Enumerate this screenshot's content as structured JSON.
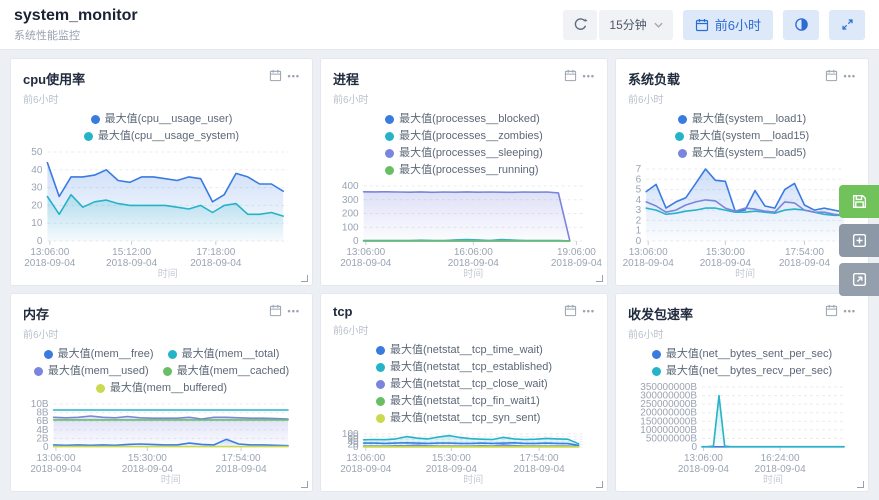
{
  "header": {
    "title": "system_monitor",
    "subtitle": "系统性能监控",
    "refresh_interval": "15分钟",
    "range_label": "前6小时"
  },
  "icons": {
    "ellipsis": "•••"
  },
  "panels": [
    {
      "title": "cpu使用率",
      "subtitle": "前6小时"
    },
    {
      "title": "进程",
      "subtitle": "前6小时"
    },
    {
      "title": "系统负载",
      "subtitle": "前6小时"
    },
    {
      "title": "内存",
      "subtitle": "前6小时"
    },
    {
      "title": "tcp",
      "subtitle": "前6小时"
    },
    {
      "title": "收发包速率",
      "subtitle": "前6小时"
    }
  ],
  "chart_data": [
    {
      "type": "line",
      "title": "cpu使用率",
      "xlabel": "时间",
      "ylim": [
        0,
        50
      ],
      "yticks": [
        "50",
        "40",
        "30",
        "20",
        "10",
        "0"
      ],
      "xticks": [
        {
          "time": "13:06:00",
          "date": "2018-09-04",
          "pos": 0.01
        },
        {
          "time": "15:12:00",
          "date": "2018-09-04",
          "pos": 0.35
        },
        {
          "time": "17:18:00",
          "date": "2018-09-04",
          "pos": 0.7
        }
      ],
      "xspan": 0.98,
      "series": [
        {
          "name": "最大值(cpu__usage_user)",
          "color": "#3a7be0",
          "fill": true,
          "values": [
            44,
            25,
            36,
            36,
            37,
            40,
            34,
            33,
            36,
            36,
            35,
            34,
            36,
            35,
            22,
            26,
            38,
            36,
            32,
            32,
            28
          ]
        },
        {
          "name": "最大值(cpu__usage_system)",
          "color": "#25b3c7",
          "fill": true,
          "values": [
            25,
            15,
            26,
            19,
            22,
            23,
            21,
            20,
            20,
            20,
            20,
            19,
            18,
            20,
            16,
            20,
            21,
            15,
            15,
            16,
            14
          ]
        }
      ]
    },
    {
      "type": "line",
      "title": "进程",
      "xlabel": "时间",
      "ylim": [
        0,
        400
      ],
      "yticks": [
        "400",
        "300",
        "200",
        "100",
        "0"
      ],
      "xticks": [
        {
          "time": "13:06:00",
          "date": "2018-09-04",
          "pos": 0.01
        },
        {
          "time": "16:06:00",
          "date": "2018-09-04",
          "pos": 0.5
        },
        {
          "time": "19:06:00",
          "date": "2018-09-04",
          "pos": 0.97
        }
      ],
      "xspan": 0.94,
      "series": [
        {
          "name": "最大值(processes__blocked)",
          "color": "#3a7be0",
          "fill": false,
          "values": [
            1,
            1,
            1,
            1,
            1,
            1,
            1,
            1,
            1,
            1,
            1,
            1,
            1,
            1,
            1,
            1,
            1,
            1,
            1
          ]
        },
        {
          "name": "最大值(processes__zombies)",
          "color": "#25b3c7",
          "fill": false,
          "values": [
            2,
            2,
            2,
            2,
            2,
            6,
            3,
            2,
            8,
            10,
            8,
            3,
            10,
            7,
            3,
            2,
            2,
            2,
            1
          ]
        },
        {
          "name": "最大值(processes__sleeping)",
          "color": "#7a85dd",
          "fill": true,
          "values": [
            358,
            357,
            358,
            356,
            355,
            357,
            354,
            356,
            355,
            357,
            355,
            356,
            355,
            354,
            356,
            355,
            356,
            350,
            2
          ]
        },
        {
          "name": "最大值(processes__running)",
          "color": "#68bf63",
          "fill": false,
          "values": [
            3,
            3,
            3,
            3,
            3,
            3,
            3,
            3,
            3,
            3,
            3,
            3,
            3,
            3,
            3,
            3,
            3,
            3,
            1
          ]
        }
      ]
    },
    {
      "type": "line",
      "title": "系统负载",
      "xlabel": "时间",
      "ylim": [
        0,
        7
      ],
      "yticks": [
        "7",
        "6",
        "5",
        "4",
        "3",
        "2",
        "1",
        "0"
      ],
      "xticks": [
        {
          "time": "13:06:00",
          "date": "2018-09-04",
          "pos": 0.01
        },
        {
          "time": "15:30:00",
          "date": "2018-09-04",
          "pos": 0.4
        },
        {
          "time": "17:54:00",
          "date": "2018-09-04",
          "pos": 0.8
        }
      ],
      "xspan": 1,
      "series": [
        {
          "name": "最大值(system__load1)",
          "color": "#3a7be0",
          "fill": true,
          "values": [
            4.8,
            5.5,
            3.2,
            3.8,
            4.2,
            5.6,
            7,
            5.9,
            5.8,
            2.9,
            3,
            4.9,
            3.4,
            3.2,
            5,
            5.6,
            3.5,
            3,
            3.2,
            3,
            2.8
          ]
        },
        {
          "name": "最大值(system__load15)",
          "color": "#25b3c7",
          "fill": false,
          "values": [
            3.2,
            3,
            2.6,
            2.7,
            2.9,
            3,
            3.2,
            3.2,
            3,
            2.8,
            2.8,
            2.9,
            2.8,
            2.7,
            3,
            3.1,
            3,
            2.8,
            2.6,
            2.5,
            2.5
          ]
        },
        {
          "name": "最大值(system__load5)",
          "color": "#7a85dd",
          "fill": false,
          "values": [
            3.8,
            3.4,
            2.8,
            3,
            3.5,
            3.8,
            4,
            3.9,
            3.2,
            2.9,
            3.2,
            3.1,
            2.9,
            2.8,
            3.8,
            3.7,
            3,
            2.8,
            2.8,
            2.6,
            2.5
          ]
        }
      ]
    },
    {
      "type": "line",
      "title": "内存",
      "xlabel": "时间",
      "ylim": [
        0,
        10
      ],
      "yticks": [
        "10B",
        "8B",
        "6B",
        "4B",
        "2B",
        "0"
      ],
      "xticks": [
        {
          "time": "13:06:00",
          "date": "2018-09-04",
          "pos": 0.01
        },
        {
          "time": "15:30:00",
          "date": "2018-09-04",
          "pos": 0.4
        },
        {
          "time": "17:54:00",
          "date": "2018-09-04",
          "pos": 0.8
        }
      ],
      "xspan": 1,
      "series": [
        {
          "name": "最大值(mem__free)",
          "color": "#3a7be0",
          "fill": true,
          "values": [
            0.5,
            0.4,
            0.5,
            0.4,
            0.5,
            0.4,
            0.6,
            0.7,
            0.6,
            0.5,
            0.5,
            0.9,
            0.6,
            0.5,
            1.8,
            0.7,
            0.5,
            0.5,
            0.4,
            0.3
          ]
        },
        {
          "name": "最大值(mem__total)",
          "color": "#25b3c7",
          "fill": false,
          "values": [
            8.6,
            8.6,
            8.6,
            8.6,
            8.6,
            8.6,
            8.6,
            8.6,
            8.6,
            8.6,
            8.6,
            8.6,
            8.6,
            8.6,
            8.6,
            8.6,
            8.6,
            8.6,
            8.6,
            8.6
          ]
        },
        {
          "name": "最大值(mem__used)",
          "color": "#7a85dd",
          "fill": true,
          "values": [
            6.9,
            6.8,
            6.9,
            7.2,
            6.9,
            6.8,
            7.1,
            6.8,
            6.7,
            6.7,
            6.7,
            6.9,
            6.5,
            6.9,
            6.9,
            6.8,
            6.7,
            6.7,
            6.6,
            6.5
          ]
        },
        {
          "name": "最大值(mem__cached)",
          "color": "#68bf63",
          "fill": false,
          "values": [
            6.3,
            6.3,
            6.3,
            6.3,
            6.3,
            6.3,
            6.3,
            6.3,
            6.3,
            6.3,
            6.3,
            6.3,
            6.3,
            6.3,
            6.3,
            6.3,
            6.3,
            6.3,
            6.3,
            6.3
          ]
        },
        {
          "name": "最大值(mem__buffered)",
          "color": "#cbd94e",
          "fill": false,
          "values": [
            0.1,
            0.1,
            0.1,
            0.1,
            0.1,
            0.1,
            0.1,
            0.1,
            0.1,
            0.1,
            0.1,
            0.1,
            0.1,
            0.1,
            0.1,
            0.1,
            0.1,
            0.1,
            0.1,
            0.1
          ]
        }
      ]
    },
    {
      "type": "line",
      "title": "tcp",
      "xlabel": "时间",
      "ylim": [
        0,
        100
      ],
      "yticks": [
        "100",
        "80",
        "60",
        "40",
        "20",
        "0"
      ],
      "xticks": [
        {
          "time": "13:06:00",
          "date": "2018-09-04",
          "pos": 0.01
        },
        {
          "time": "15:30:00",
          "date": "2018-09-04",
          "pos": 0.4
        },
        {
          "time": "17:54:00",
          "date": "2018-09-04",
          "pos": 0.8
        }
      ],
      "xspan": 0.98,
      "series": [
        {
          "name": "最大值(netstat__tcp_time_wait)",
          "color": "#3a7be0",
          "fill": false,
          "values": [
            30,
            30,
            28,
            30,
            32,
            30,
            28,
            30,
            30,
            28,
            28,
            30,
            28,
            30,
            32,
            28,
            28,
            30,
            28,
            26,
            12
          ]
        },
        {
          "name": "最大值(netstat__tcp_established)",
          "color": "#25b3c7",
          "fill": true,
          "values": [
            55,
            58,
            56,
            62,
            80,
            68,
            62,
            78,
            88,
            72,
            64,
            60,
            58,
            74,
            62,
            58,
            60,
            66,
            62,
            60,
            25
          ]
        },
        {
          "name": "最大值(netstat__tcp_close_wait)",
          "color": "#7a85dd",
          "fill": false,
          "values": [
            8,
            8,
            8,
            9,
            10,
            14,
            9,
            8,
            8,
            8,
            8,
            9,
            8,
            16,
            10,
            8,
            8,
            8,
            8,
            8,
            3
          ]
        },
        {
          "name": "最大值(netstat__tcp_fin_wait1)",
          "color": "#68bf63",
          "fill": false,
          "values": [
            3,
            3,
            3,
            3,
            3,
            3,
            3,
            3,
            3,
            3,
            3,
            3,
            3,
            3,
            3,
            3,
            3,
            3,
            3,
            3,
            2
          ]
        },
        {
          "name": "最大值(netstat__tcp_syn_sent)",
          "color": "#cbd94e",
          "fill": false,
          "values": [
            1,
            1,
            1,
            1,
            1,
            1,
            1,
            1,
            1,
            1,
            1,
            1,
            1,
            1,
            1,
            1,
            1,
            1,
            1,
            1,
            1
          ]
        }
      ]
    },
    {
      "type": "line",
      "title": "收发包速率",
      "xlabel": "时间",
      "ylim": [
        0,
        350000000
      ],
      "yticks": [
        "350000000B",
        "300000000B",
        "250000000B",
        "200000000B",
        "150000000B",
        "100000000B",
        "50000000B",
        "0"
      ],
      "xticks": [
        {
          "time": "13:06:00",
          "date": "2018-09-04",
          "pos": 0.01
        },
        {
          "time": "16:24:00",
          "date": "2018-09-04",
          "pos": 0.55
        }
      ],
      "xspan": 1,
      "series": [
        {
          "name": "最大值(net__bytes_sent_per_sec)",
          "color": "#3a7be0",
          "fill": false,
          "values": [
            1000000,
            1000000,
            1000000,
            1000000,
            1000000,
            1000000,
            1000000,
            1000000,
            1000000,
            1000000,
            1000000,
            1000000,
            1000000,
            1000000,
            1000000,
            1000000,
            1000000,
            1000000,
            1000000,
            1000000,
            1000000,
            1000000,
            1000000,
            1000000,
            1000000,
            1000000
          ]
        },
        {
          "name": "最大值(net__bytes_recv_per_sec)",
          "color": "#25b3c7",
          "fill": true,
          "values": [
            2000000,
            2000000,
            5000000,
            300000000,
            5000000,
            2000000,
            2000000,
            2000000,
            2000000,
            2000000,
            2000000,
            2000000,
            2000000,
            2000000,
            2000000,
            2000000,
            2000000,
            2000000,
            2000000,
            2000000,
            2000000,
            2000000,
            2000000,
            2000000,
            2000000,
            2000000
          ]
        }
      ]
    }
  ]
}
